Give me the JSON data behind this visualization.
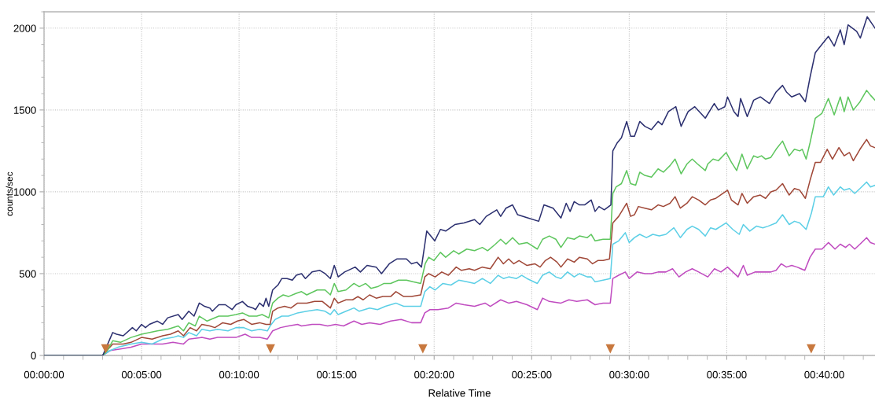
{
  "chart_data": {
    "type": "line",
    "xlabel": "Relative Time",
    "ylabel": "counts/sec",
    "xlim": [
      0,
      42.6
    ],
    "ylim": [
      0,
      2100
    ],
    "xticks": [
      {
        "value": 0,
        "label": "00:00:00"
      },
      {
        "value": 5,
        "label": "00:05:00"
      },
      {
        "value": 10,
        "label": "00:10:00"
      },
      {
        "value": 15,
        "label": "00:15:00"
      },
      {
        "value": 20,
        "label": "00:20:00"
      },
      {
        "value": 25,
        "label": "00:25:00"
      },
      {
        "value": 30,
        "label": "00:30:00"
      },
      {
        "value": 35,
        "label": "00:35:00"
      },
      {
        "value": 40,
        "label": "00:40:00"
      }
    ],
    "yticks": [
      0,
      500,
      1000,
      1500,
      2000
    ],
    "grid": true,
    "marker": "none",
    "line_style": "solid",
    "series": [
      {
        "color": "#2c3070",
        "x": [
          0,
          3.01,
          3.52,
          3.72,
          4.06,
          4.53,
          4.73,
          5.0,
          5.2,
          5.4,
          5.81,
          6.08,
          6.34,
          6.88,
          7.08,
          7.42,
          7.69,
          7.96,
          8.23,
          8.5,
          8.63,
          8.96,
          9.3,
          9.64,
          9.84,
          10.17,
          10.44,
          10.71,
          10.85,
          11.05,
          11.25,
          11.38,
          11.52,
          11.72,
          11.99,
          12.19,
          12.46,
          12.73,
          12.93,
          13.2,
          13.4,
          13.74,
          14.14,
          14.41,
          14.68,
          14.88,
          15.08,
          15.41,
          15.95,
          16.22,
          16.56,
          17.03,
          17.3,
          17.7,
          18.1,
          18.58,
          18.84,
          19.11,
          19.35,
          19.62,
          20.03,
          20.32,
          20.59,
          21.06,
          21.53,
          22.07,
          22.34,
          22.67,
          23.21,
          23.41,
          23.68,
          24.02,
          24.28,
          24.82,
          25.36,
          25.63,
          26.1,
          26.5,
          26.77,
          26.97,
          27.18,
          27.45,
          27.71,
          28.05,
          28.25,
          28.45,
          28.72,
          29.06,
          29.16,
          29.39,
          29.6,
          29.87,
          30.07,
          30.27,
          30.54,
          30.8,
          31.14,
          31.48,
          31.68,
          32.01,
          32.39,
          32.66,
          33.02,
          33.36,
          33.9,
          34.36,
          34.57,
          34.9,
          35.04,
          35.37,
          35.58,
          35.71,
          36.05,
          36.38,
          36.72,
          37.19,
          37.53,
          37.86,
          38.06,
          38.33,
          38.73,
          39.03,
          39.27,
          39.54,
          39.74,
          40.21,
          40.51,
          40.82,
          41.02,
          41.22,
          41.66,
          41.85,
          42.2,
          42.6
        ],
        "values": [
          0,
          0,
          140,
          130,
          120,
          170,
          150,
          190,
          170,
          190,
          210,
          190,
          230,
          250,
          220,
          270,
          240,
          320,
          300,
          290,
          270,
          310,
          310,
          280,
          310,
          330,
          300,
          290,
          280,
          320,
          300,
          350,
          300,
          400,
          430,
          470,
          470,
          460,
          490,
          500,
          470,
          510,
          520,
          500,
          470,
          550,
          480,
          510,
          540,
          510,
          550,
          540,
          500,
          560,
          590,
          590,
          560,
          570,
          540,
          760,
          700,
          770,
          760,
          800,
          810,
          830,
          800,
          850,
          890,
          850,
          900,
          920,
          860,
          840,
          820,
          920,
          900,
          840,
          930,
          880,
          940,
          920,
          920,
          950,
          880,
          910,
          890,
          920,
          1250,
          1300,
          1330,
          1430,
          1340,
          1340,
          1430,
          1400,
          1380,
          1430,
          1410,
          1490,
          1520,
          1400,
          1490,
          1520,
          1450,
          1540,
          1500,
          1520,
          1580,
          1490,
          1460,
          1570,
          1460,
          1560,
          1580,
          1540,
          1610,
          1650,
          1610,
          1580,
          1600,
          1550,
          1700,
          1850,
          1880,
          1950,
          1890,
          1990,
          1900,
          2020,
          1980,
          1940,
          2070,
          2000
        ]
      },
      {
        "color": "#5ec65e",
        "x": [
          0,
          3.0,
          3.25,
          3.52,
          3.92,
          4.46,
          5.0,
          5.81,
          6.34,
          6.88,
          7.15,
          7.42,
          7.75,
          7.96,
          8.36,
          8.96,
          9.43,
          9.84,
          10.17,
          10.51,
          10.91,
          11.18,
          11.52,
          11.72,
          11.99,
          12.26,
          12.53,
          12.93,
          13.2,
          13.47,
          14.0,
          14.41,
          14.68,
          14.88,
          15.08,
          15.48,
          15.89,
          16.16,
          16.49,
          16.76,
          17.1,
          17.43,
          17.77,
          18.17,
          18.58,
          18.91,
          19.31,
          19.54,
          19.72,
          19.99,
          20.32,
          20.59,
          21.0,
          21.26,
          21.67,
          22.07,
          22.47,
          22.74,
          23.14,
          23.41,
          23.68,
          24.02,
          24.35,
          24.76,
          25.29,
          25.56,
          25.9,
          26.24,
          26.5,
          26.84,
          27.18,
          27.45,
          27.85,
          28.05,
          28.25,
          28.66,
          29.03,
          29.16,
          29.33,
          29.6,
          29.87,
          30.07,
          30.33,
          30.54,
          30.8,
          31.14,
          31.48,
          31.75,
          32.09,
          32.35,
          32.66,
          32.96,
          33.23,
          33.5,
          33.9,
          34.03,
          34.3,
          34.57,
          34.97,
          35.24,
          35.51,
          35.78,
          36.05,
          36.38,
          36.58,
          36.78,
          36.99,
          37.26,
          37.53,
          37.86,
          38.2,
          38.47,
          38.74,
          38.87,
          39.07,
          39.27,
          39.54,
          39.88,
          40.21,
          40.51,
          40.82,
          41.02,
          41.22,
          41.49,
          41.83,
          42.17,
          42.37,
          42.6
        ],
        "values": [
          0,
          0,
          30,
          90,
          80,
          110,
          130,
          150,
          160,
          180,
          150,
          200,
          180,
          240,
          210,
          240,
          240,
          250,
          260,
          240,
          240,
          250,
          230,
          320,
          350,
          370,
          360,
          380,
          390,
          370,
          400,
          400,
          370,
          440,
          390,
          400,
          440,
          420,
          440,
          410,
          420,
          440,
          440,
          460,
          460,
          450,
          440,
          560,
          600,
          580,
          630,
          600,
          640,
          620,
          650,
          640,
          660,
          640,
          680,
          710,
          680,
          720,
          680,
          690,
          650,
          710,
          730,
          710,
          660,
          720,
          710,
          730,
          720,
          740,
          700,
          710,
          710,
          990,
          1030,
          1050,
          1130,
          1050,
          1040,
          1120,
          1100,
          1090,
          1140,
          1120,
          1160,
          1200,
          1110,
          1170,
          1200,
          1170,
          1130,
          1170,
          1200,
          1190,
          1240,
          1180,
          1130,
          1230,
          1140,
          1220,
          1210,
          1220,
          1200,
          1210,
          1260,
          1310,
          1220,
          1260,
          1250,
          1260,
          1200,
          1300,
          1450,
          1480,
          1570,
          1470,
          1580,
          1490,
          1580,
          1500,
          1550,
          1620,
          1590,
          1560
        ]
      },
      {
        "color": "#a04838",
        "x": [
          0,
          3.0,
          3.52,
          4.06,
          4.46,
          5.0,
          5.54,
          6.08,
          6.48,
          6.88,
          7.15,
          7.49,
          7.82,
          8.09,
          8.5,
          8.76,
          9.16,
          9.57,
          9.91,
          10.24,
          10.64,
          11.05,
          11.38,
          11.59,
          11.72,
          11.99,
          12.33,
          12.66,
          13.0,
          13.47,
          13.87,
          14.27,
          14.68,
          14.88,
          15.08,
          15.48,
          15.82,
          16.09,
          16.36,
          16.69,
          17.03,
          17.37,
          17.77,
          18.04,
          18.44,
          18.84,
          19.31,
          19.52,
          19.72,
          20.05,
          20.39,
          20.73,
          21.13,
          21.4,
          21.8,
          22.07,
          22.47,
          22.88,
          23.28,
          23.55,
          23.82,
          24.08,
          24.35,
          24.76,
          25.16,
          25.43,
          25.7,
          25.97,
          26.3,
          26.5,
          26.84,
          27.18,
          27.45,
          27.85,
          28.12,
          28.39,
          28.66,
          28.99,
          29.16,
          29.46,
          29.87,
          30.07,
          30.27,
          30.47,
          30.8,
          31.14,
          31.48,
          31.75,
          32.09,
          32.35,
          32.62,
          32.96,
          33.23,
          33.56,
          33.9,
          34.17,
          34.44,
          35.04,
          35.24,
          35.58,
          35.78,
          36.05,
          36.38,
          36.72,
          36.99,
          37.26,
          37.53,
          37.86,
          38.2,
          38.47,
          38.74,
          39.03,
          39.27,
          39.54,
          39.81,
          40.15,
          40.42,
          40.75,
          41.02,
          41.29,
          41.49,
          41.83,
          42.17,
          42.37,
          42.6
        ],
        "values": [
          0,
          0,
          70,
          70,
          80,
          110,
          100,
          120,
          130,
          150,
          120,
          170,
          150,
          190,
          180,
          170,
          200,
          190,
          210,
          220,
          190,
          200,
          190,
          190,
          270,
          290,
          300,
          290,
          320,
          320,
          330,
          330,
          290,
          350,
          320,
          340,
          340,
          360,
          340,
          370,
          350,
          360,
          360,
          390,
          360,
          360,
          370,
          480,
          500,
          480,
          510,
          490,
          540,
          520,
          530,
          520,
          540,
          530,
          600,
          560,
          590,
          560,
          580,
          550,
          560,
          540,
          580,
          600,
          570,
          540,
          590,
          570,
          600,
          590,
          560,
          580,
          580,
          590,
          810,
          850,
          930,
          850,
          860,
          910,
          900,
          890,
          920,
          910,
          930,
          970,
          900,
          930,
          970,
          950,
          920,
          950,
          960,
          1010,
          950,
          920,
          990,
          930,
          970,
          980,
          960,
          1000,
          1010,
          1050,
          980,
          1020,
          1010,
          960,
          1070,
          1180,
          1180,
          1260,
          1200,
          1270,
          1220,
          1240,
          1190,
          1260,
          1320,
          1280,
          1270
        ]
      },
      {
        "color": "#5ccfe6",
        "x": [
          0,
          3.0,
          3.39,
          3.79,
          4.46,
          5.0,
          5.54,
          6.08,
          6.61,
          6.88,
          7.15,
          7.42,
          7.82,
          8.09,
          8.5,
          8.9,
          9.43,
          9.84,
          10.24,
          10.64,
          11.05,
          11.45,
          11.59,
          11.85,
          12.19,
          12.53,
          13.0,
          13.47,
          14.0,
          14.41,
          14.68,
          14.88,
          15.08,
          15.48,
          15.89,
          16.16,
          16.69,
          17.1,
          17.5,
          18.04,
          18.44,
          18.84,
          19.31,
          19.52,
          19.78,
          20.05,
          20.45,
          20.86,
          21.26,
          21.67,
          22.07,
          22.47,
          22.88,
          23.28,
          23.55,
          23.82,
          24.22,
          24.49,
          24.76,
          25.29,
          25.56,
          25.9,
          26.24,
          26.5,
          26.84,
          27.18,
          27.45,
          27.85,
          28.05,
          28.25,
          28.66,
          29.03,
          29.16,
          29.46,
          29.8,
          30.0,
          30.27,
          30.54,
          30.88,
          31.21,
          31.54,
          31.88,
          32.29,
          32.62,
          32.96,
          33.23,
          33.56,
          33.9,
          34.17,
          34.44,
          34.97,
          35.31,
          35.64,
          35.85,
          36.18,
          36.52,
          36.85,
          37.12,
          37.53,
          37.86,
          38.2,
          38.47,
          38.74,
          39.07,
          39.34,
          39.54,
          39.95,
          40.21,
          40.48,
          40.82,
          41.02,
          41.29,
          41.56,
          41.83,
          42.17,
          42.37,
          42.6
        ],
        "values": [
          0,
          0,
          30,
          50,
          70,
          80,
          70,
          100,
          110,
          120,
          110,
          140,
          120,
          160,
          150,
          160,
          150,
          170,
          170,
          150,
          160,
          150,
          180,
          220,
          240,
          240,
          260,
          270,
          280,
          270,
          250,
          280,
          250,
          270,
          290,
          270,
          290,
          280,
          300,
          320,
          300,
          300,
          300,
          390,
          420,
          400,
          440,
          430,
          460,
          450,
          440,
          470,
          440,
          490,
          470,
          480,
          470,
          490,
          470,
          440,
          490,
          510,
          480,
          470,
          510,
          480,
          500,
          480,
          480,
          450,
          460,
          470,
          680,
          700,
          750,
          690,
          720,
          740,
          720,
          740,
          730,
          740,
          780,
          720,
          770,
          790,
          770,
          730,
          780,
          770,
          810,
          770,
          740,
          800,
          760,
          790,
          780,
          790,
          810,
          860,
          800,
          820,
          810,
          770,
          870,
          970,
          970,
          1030,
          980,
          1030,
          1010,
          1020,
          990,
          1020,
          1060,
          1030,
          1040
        ]
      },
      {
        "color": "#c04cc0",
        "x": [
          0,
          3.0,
          3.39,
          3.92,
          4.46,
          5.0,
          5.54,
          6.08,
          6.61,
          7.15,
          7.42,
          8.09,
          8.5,
          8.9,
          9.3,
          9.84,
          10.31,
          10.64,
          11.05,
          11.45,
          11.72,
          12.12,
          12.53,
          13.0,
          13.2,
          13.74,
          14.14,
          14.54,
          14.95,
          15.35,
          15.89,
          16.29,
          16.69,
          17.23,
          17.77,
          18.31,
          18.84,
          19.31,
          19.52,
          19.78,
          20.19,
          20.73,
          21.13,
          21.53,
          22.07,
          22.61,
          22.88,
          23.41,
          23.82,
          24.22,
          24.76,
          25.29,
          25.56,
          25.9,
          26.5,
          26.91,
          27.31,
          27.85,
          28.25,
          28.66,
          29.03,
          29.16,
          29.46,
          29.8,
          30.0,
          30.4,
          30.8,
          31.14,
          31.48,
          31.88,
          32.22,
          32.55,
          32.89,
          33.23,
          33.56,
          34.03,
          34.37,
          34.7,
          35.04,
          35.31,
          35.58,
          35.85,
          36.05,
          36.45,
          36.85,
          37.26,
          37.53,
          37.79,
          38.06,
          38.33,
          38.6,
          39.0,
          39.27,
          39.54,
          39.88,
          40.21,
          40.55,
          40.82,
          41.09,
          41.29,
          41.56,
          41.83,
          42.17,
          42.37,
          42.6
        ],
        "values": [
          0,
          0,
          30,
          40,
          50,
          70,
          70,
          70,
          80,
          70,
          100,
          110,
          100,
          110,
          110,
          110,
          130,
          110,
          110,
          100,
          150,
          170,
          180,
          190,
          180,
          190,
          190,
          180,
          190,
          180,
          210,
          190,
          200,
          190,
          210,
          220,
          200,
          200,
          260,
          280,
          280,
          290,
          320,
          310,
          300,
          320,
          300,
          340,
          320,
          330,
          310,
          280,
          350,
          330,
          320,
          340,
          330,
          340,
          310,
          320,
          320,
          470,
          490,
          510,
          470,
          510,
          500,
          500,
          510,
          510,
          530,
          480,
          510,
          530,
          510,
          480,
          530,
          510,
          540,
          510,
          480,
          550,
          490,
          510,
          510,
          510,
          520,
          560,
          540,
          550,
          540,
          520,
          600,
          650,
          650,
          690,
          650,
          680,
          660,
          680,
          650,
          680,
          720,
          690,
          680
        ]
      },
      {
        "type": "scatter",
        "marker": "triangle",
        "color": "#c8783e",
        "x": [
          3.16,
          11.61,
          19.42,
          29.03,
          39.33
        ],
        "values": [
          40,
          40,
          40,
          40,
          40
        ]
      }
    ]
  }
}
